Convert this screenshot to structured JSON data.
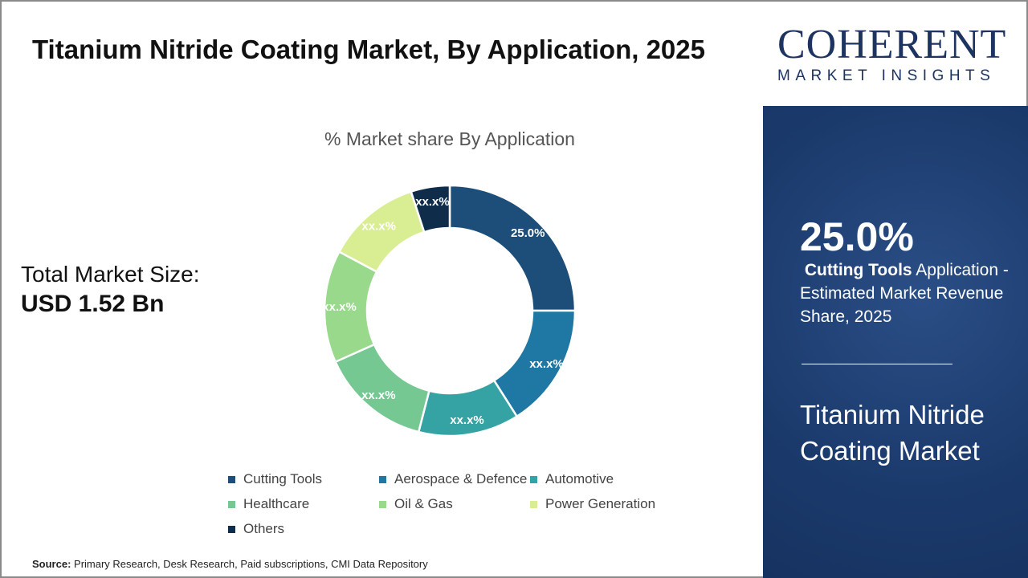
{
  "title": "Titanium Nitride Coating Market, By Application, 2025",
  "market_size": {
    "label": "Total Market Size:",
    "value": "USD 1.52 Bn"
  },
  "source": {
    "label": "Source:",
    "text": "Primary Research, Desk Research, Paid subscriptions, CMI Data Repository"
  },
  "logo": {
    "name": "COHERENT",
    "tagline": "MARKET INSIGHTS"
  },
  "highlight": {
    "value": "25.0%",
    "segment": "Cutting Tools",
    "desc": "Application - Estimated Market Revenue Share, 2025",
    "market": "Titanium Nitride Coating Market"
  },
  "chart_data": {
    "type": "pie",
    "donut": true,
    "title": "% Market share By Application",
    "categories": [
      "Cutting Tools",
      "Aerospace & Defence",
      "Automotive",
      "Healthcare",
      "Oil & Gas",
      "Power Generation",
      "Others"
    ],
    "values": [
      25.0,
      16.0,
      13.0,
      14.3,
      14.5,
      12.2,
      5.0
    ],
    "labels": [
      "25.0%",
      "xx.x%",
      "xx.x%",
      "xx.x%",
      "xx.x%",
      "xx.x%",
      "xx.x%"
    ],
    "colors": [
      "#1d4e79",
      "#1f77a4",
      "#35a3a3",
      "#76c893",
      "#99d98c",
      "#d9ed92",
      "#0f2d4a"
    ],
    "legend": "bottom"
  }
}
